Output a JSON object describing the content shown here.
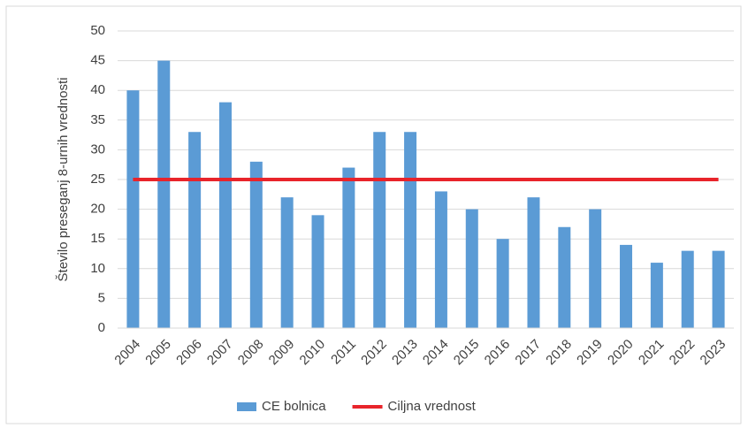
{
  "chart_data": {
    "type": "bar",
    "y_label": "Število preseganj 8-urnih vrednosti",
    "categories": [
      "2004",
      "2005",
      "2006",
      "2007",
      "2008",
      "2009",
      "2010",
      "2011",
      "2012",
      "2013",
      "2014",
      "2015",
      "2016",
      "2017",
      "2018",
      "2019",
      "2020",
      "2021",
      "2022",
      "2023"
    ],
    "series": [
      {
        "name": "CE bolnica",
        "color": "#5b9bd5",
        "type": "bar",
        "values": [
          40,
          45,
          33,
          38,
          28,
          22,
          19,
          27,
          33,
          33,
          23,
          20,
          15,
          22,
          17,
          20,
          14,
          11,
          13,
          13
        ]
      },
      {
        "name": "Ciljna vrednost",
        "color": "#e8242b",
        "type": "line",
        "values": [
          25,
          25,
          25,
          25,
          25,
          25,
          25,
          25,
          25,
          25,
          25,
          25,
          25,
          25,
          25,
          25,
          25,
          25,
          25,
          25
        ]
      }
    ],
    "ylim": [
      0,
      50
    ],
    "yticks": [
      0,
      5,
      10,
      15,
      20,
      25,
      30,
      35,
      40,
      45,
      50
    ],
    "grid": true,
    "legend": "bottom"
  }
}
